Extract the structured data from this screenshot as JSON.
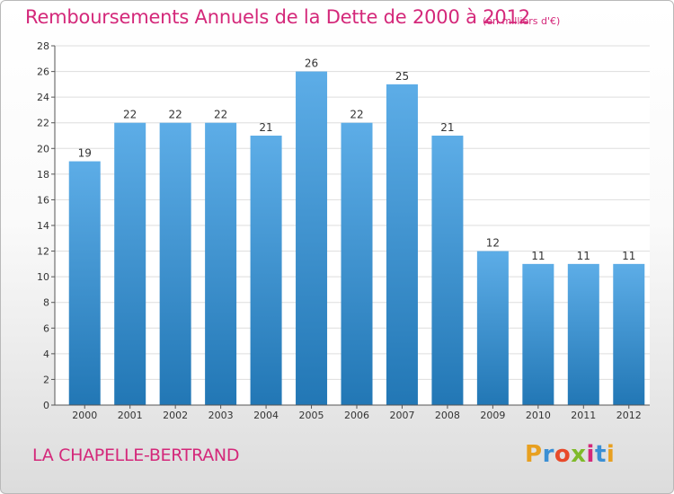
{
  "chart_data": {
    "type": "bar",
    "title": "Remboursements Annuels de la Dette de 2000 à 2012",
    "unit_note": "(en milliers d'€)",
    "categories": [
      "2000",
      "2001",
      "2002",
      "2003",
      "2004",
      "2005",
      "2006",
      "2007",
      "2008",
      "2009",
      "2010",
      "2011",
      "2012"
    ],
    "values": [
      19,
      22,
      22,
      22,
      21,
      26,
      22,
      25,
      21,
      12,
      11,
      11,
      11
    ],
    "ylim": [
      0,
      28
    ],
    "yticks": [
      0,
      2,
      4,
      6,
      8,
      10,
      12,
      14,
      16,
      18,
      20,
      22,
      24,
      26,
      28
    ],
    "xlabel": "",
    "ylabel": "",
    "grid": true,
    "colors": {
      "bar_top": "#5dade7",
      "bar_bottom": "#2277b5",
      "grid": "#dddddd",
      "axis": "#555555"
    }
  },
  "commune": "LA CHAPELLE-BERTRAND",
  "logo": {
    "letters": [
      "P",
      "r",
      "o",
      "x",
      "i",
      "t",
      "i"
    ],
    "colors": [
      "#e8a020",
      "#3b8fd4",
      "#e84a2a",
      "#7fba2a",
      "#d4287a",
      "#3b8fd4",
      "#e8a020"
    ]
  },
  "theme": {
    "accent": "#d4287a"
  }
}
